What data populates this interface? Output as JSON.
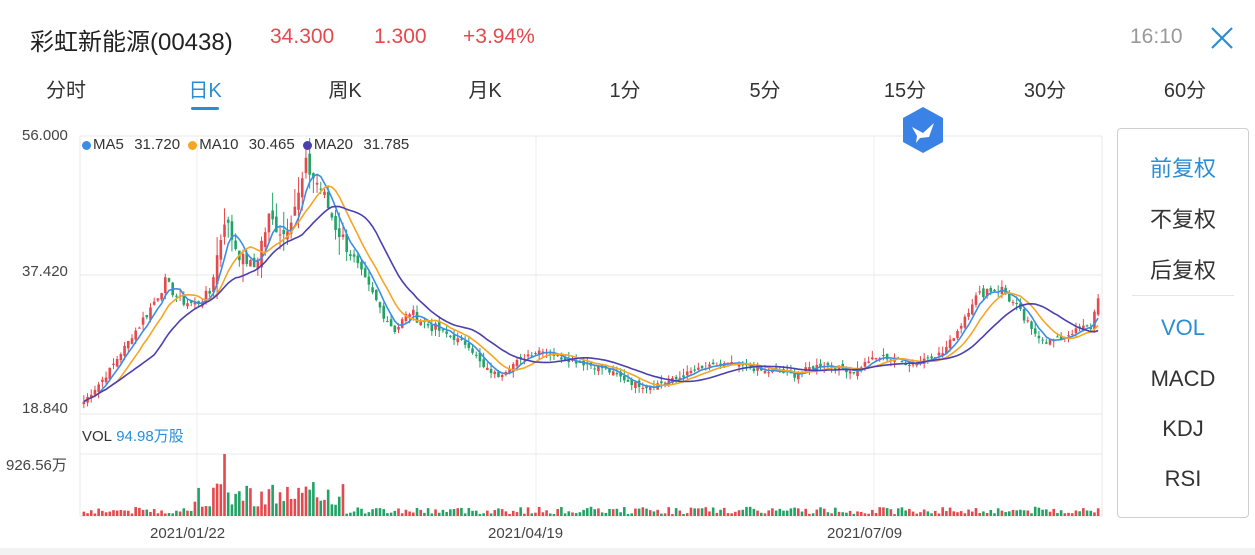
{
  "header": {
    "stock_name": "彩虹新能源(00438)",
    "price": "34.300",
    "change": "1.300",
    "change_pct": "+3.94%",
    "time": "16:10"
  },
  "tabs": [
    {
      "label": "分时"
    },
    {
      "label": "日K"
    },
    {
      "label": "周K"
    },
    {
      "label": "月K"
    },
    {
      "label": "1分"
    },
    {
      "label": "5分"
    },
    {
      "label": "15分"
    },
    {
      "label": "30分"
    },
    {
      "label": "60分"
    }
  ],
  "active_tab": "日K",
  "ma_legend": {
    "ma5_label": "MA5",
    "ma5_value": "31.720",
    "ma10_label": "MA10",
    "ma10_value": "30.465",
    "ma20_label": "MA20",
    "ma20_value": "31.785"
  },
  "y_axis": {
    "top": "56.000",
    "mid": "37.420",
    "bottom": "18.840"
  },
  "volume": {
    "label": "VOL",
    "value": "94.98万股",
    "max_label": "926.56万"
  },
  "x_axis": {
    "d1": "2021/01/22",
    "d2": "2021/04/19",
    "d3": "2021/07/09"
  },
  "side_panel": {
    "items_top": [
      "前复权",
      "不复权",
      "后复权"
    ],
    "items_bottom": [
      "VOL",
      "MACD",
      "KDJ",
      "RSI"
    ],
    "active_top": "前复权",
    "active_bottom": "VOL"
  },
  "colors": {
    "up": "#e5484d",
    "down": "#21a366",
    "ma5": "#3a8ee6",
    "ma10": "#f5a623",
    "ma20": "#4b3fb0",
    "accent": "#2b8ed4"
  },
  "chart_data": {
    "type": "candlestick",
    "y_range": [
      18.84,
      56.0
    ],
    "price_keypoints": [
      [
        0,
        20.5
      ],
      [
        6,
        24.0
      ],
      [
        12,
        28.5
      ],
      [
        18,
        33.0
      ],
      [
        22,
        36.5
      ],
      [
        26,
        34.0
      ],
      [
        30,
        33.5
      ],
      [
        34,
        35.0
      ],
      [
        38,
        45.0
      ],
      [
        42,
        40.0
      ],
      [
        46,
        38.5
      ],
      [
        50,
        45.0
      ],
      [
        54,
        43.0
      ],
      [
        58,
        48.0
      ],
      [
        60,
        52.0
      ],
      [
        64,
        49.0
      ],
      [
        68,
        44.0
      ],
      [
        72,
        40.5
      ],
      [
        76,
        36.5
      ],
      [
        80,
        33.0
      ],
      [
        84,
        30.0
      ],
      [
        88,
        32.5
      ],
      [
        92,
        31.0
      ],
      [
        96,
        30.0
      ],
      [
        100,
        29.0
      ],
      [
        104,
        28.0
      ],
      [
        108,
        25.0
      ],
      [
        112,
        24.0
      ],
      [
        116,
        25.5
      ],
      [
        120,
        26.8
      ],
      [
        124,
        27.5
      ],
      [
        128,
        26.5
      ],
      [
        132,
        26.0
      ],
      [
        136,
        25.5
      ],
      [
        140,
        25.0
      ],
      [
        144,
        24.0
      ],
      [
        148,
        23.0
      ],
      [
        152,
        22.5
      ],
      [
        156,
        23.0
      ],
      [
        160,
        23.5
      ],
      [
        164,
        24.5
      ],
      [
        168,
        25.0
      ],
      [
        172,
        25.5
      ],
      [
        176,
        25.5
      ],
      [
        180,
        25.0
      ],
      [
        184,
        24.5
      ],
      [
        188,
        24.5
      ],
      [
        192,
        24.0
      ],
      [
        196,
        25.0
      ],
      [
        200,
        25.5
      ],
      [
        204,
        25.0
      ],
      [
        208,
        24.5
      ],
      [
        212,
        26.0
      ],
      [
        216,
        26.5
      ],
      [
        220,
        26.0
      ],
      [
        224,
        25.5
      ],
      [
        228,
        26.5
      ],
      [
        232,
        27.0
      ],
      [
        236,
        30.0
      ],
      [
        240,
        34.0
      ],
      [
        244,
        35.5
      ],
      [
        248,
        35.5
      ],
      [
        252,
        33.0
      ],
      [
        256,
        30.0
      ],
      [
        260,
        28.5
      ],
      [
        264,
        29.0
      ],
      [
        268,
        30.0
      ],
      [
        272,
        30.5
      ],
      [
        274,
        34.3
      ]
    ],
    "n_candles": 275,
    "ma5": "31.720",
    "ma10": "30.465",
    "ma20": "31.785",
    "vol_max": "926.56万"
  }
}
